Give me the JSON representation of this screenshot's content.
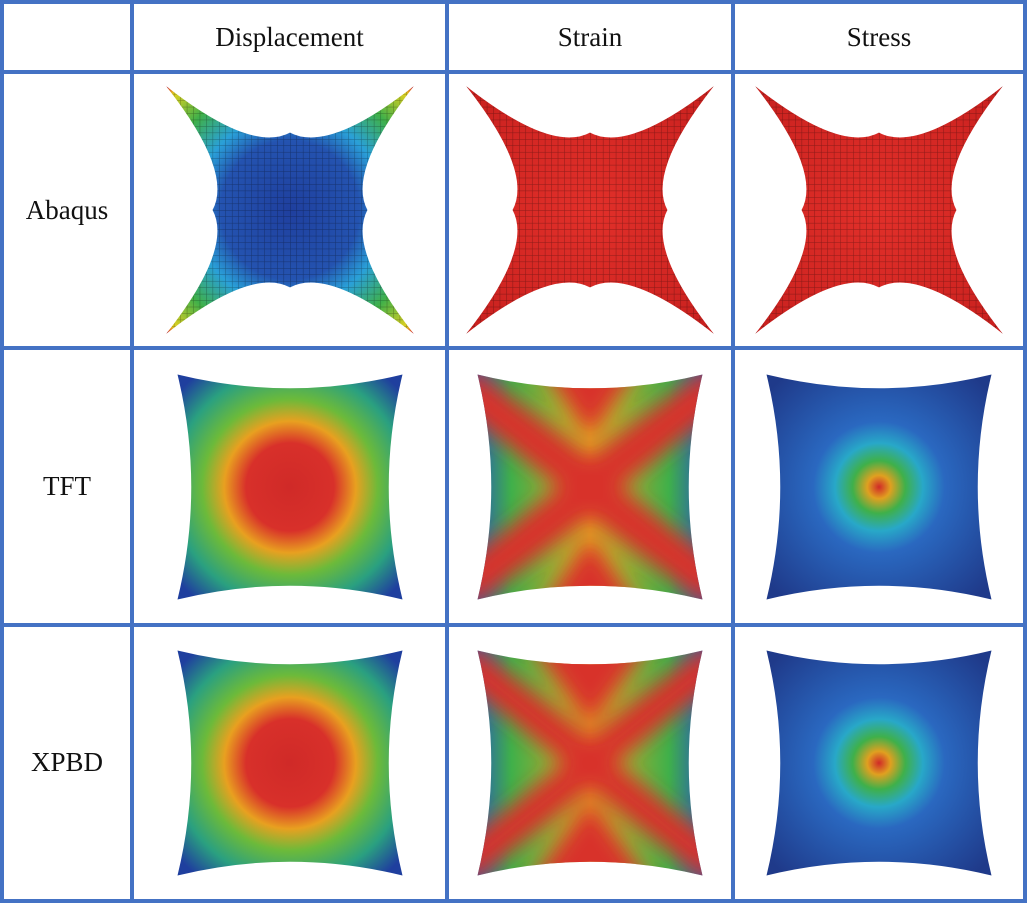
{
  "table": {
    "corner": "",
    "columns": [
      "Displacement",
      "Strain",
      "Stress"
    ],
    "rows": [
      {
        "label": "Abaqus"
      },
      {
        "label": "TFT"
      },
      {
        "label": "XPBD"
      }
    ]
  },
  "colormap": {
    "low": "#1f3f9e",
    "mid": "#3fb04a",
    "high": "#d8282a"
  }
}
